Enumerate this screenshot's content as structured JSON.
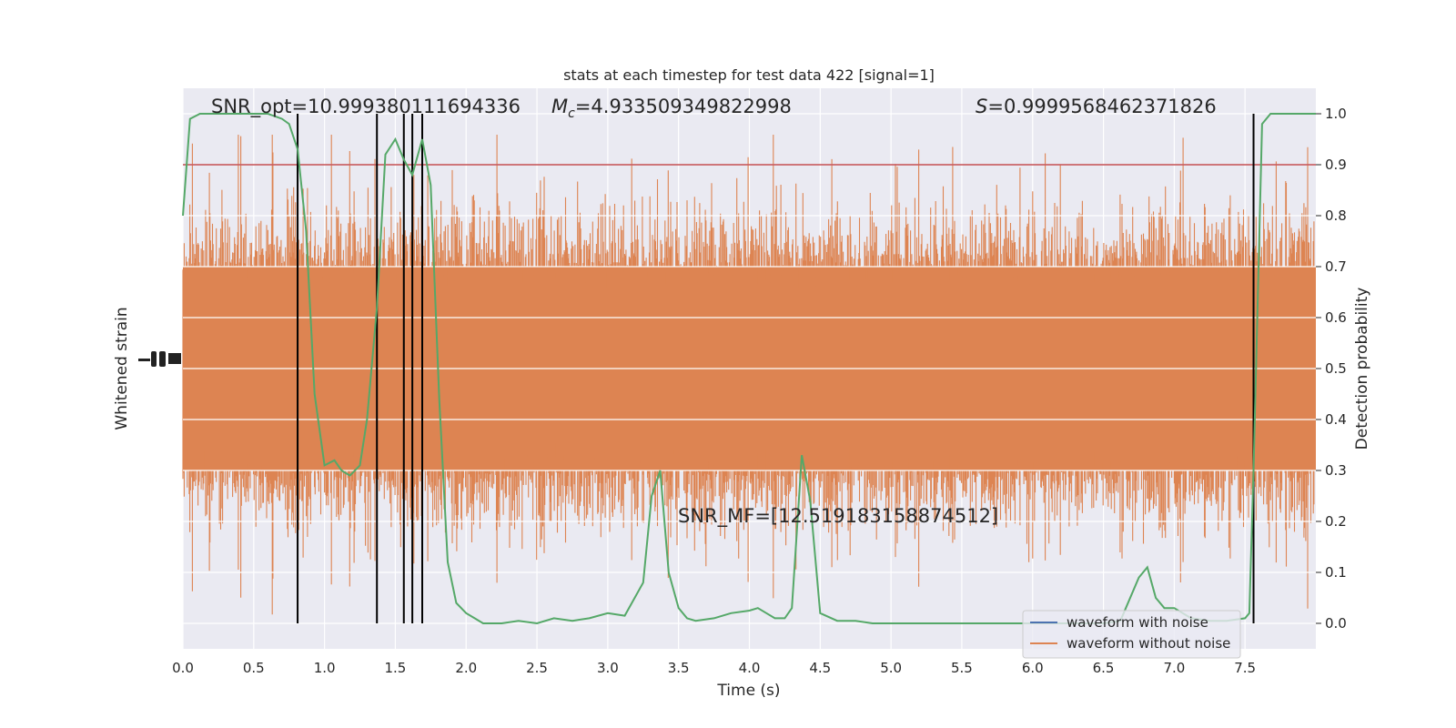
{
  "chart_data": {
    "type": "line",
    "title": "stats at each timestep for test data 422 [signal=1]",
    "xlabel": "Time (s)",
    "ylabel_left": "Whitened strain",
    "ylabel_right": "Detection probability",
    "xlim": [
      0,
      8
    ],
    "ylim_right": [
      -0.05,
      1.05
    ],
    "x_ticks": [
      "0.0",
      "0.5",
      "1.0",
      "1.5",
      "2.0",
      "2.5",
      "3.0",
      "3.5",
      "4.0",
      "4.5",
      "5.0",
      "5.5",
      "6.0",
      "6.5",
      "7.0",
      "7.5"
    ],
    "y_ticks_right": [
      "0.0",
      "0.1",
      "0.2",
      "0.3",
      "0.4",
      "0.5",
      "0.6",
      "0.7",
      "0.8",
      "0.9",
      "1.0"
    ],
    "grid": true,
    "legend_position": "bottom-right",
    "annotations": {
      "snr_opt": "SNR_opt=10.999380111694336",
      "mc": "=4.933509349822998",
      "mc_symbol": "M",
      "mc_sub": "c",
      "s_value": "=0.9999568462371826",
      "s_symbol": "S",
      "snr_mf": "SNR_MF=[12.519183158874512]"
    },
    "threshold": 0.9,
    "detection_markers": [
      0.81,
      1.37,
      1.56,
      1.62,
      1.69,
      7.56
    ],
    "series": [
      {
        "name": "waveform with noise",
        "color": "#4c72b0",
        "kind": "strain"
      },
      {
        "name": "waveform without noise",
        "color": "#dd8452",
        "kind": "strain"
      },
      {
        "color": "#55a868",
        "kind": "probability",
        "x": [
          0.0,
          0.05,
          0.12,
          0.2,
          0.3,
          0.4,
          0.5,
          0.6,
          0.7,
          0.75,
          0.81,
          0.87,
          0.93,
          1.0,
          1.07,
          1.12,
          1.18,
          1.25,
          1.3,
          1.37,
          1.43,
          1.5,
          1.56,
          1.62,
          1.69,
          1.75,
          1.81,
          1.87,
          1.93,
          2.0,
          2.06,
          2.12,
          2.25,
          2.37,
          2.5,
          2.62,
          2.75,
          2.87,
          3.0,
          3.12,
          3.25,
          3.31,
          3.37,
          3.43,
          3.5,
          3.56,
          3.62,
          3.75,
          3.87,
          4.0,
          4.06,
          4.12,
          4.18,
          4.25,
          4.3,
          4.37,
          4.43,
          4.5,
          4.62,
          4.75,
          4.87,
          5.0,
          5.5,
          6.0,
          6.5,
          6.62,
          6.75,
          6.81,
          6.87,
          6.93,
          7.0,
          7.12,
          7.25,
          7.37,
          7.5,
          7.53,
          7.56,
          7.62,
          7.68,
          7.75,
          7.87,
          8.0
        ],
        "y": [
          0.8,
          0.99,
          1.0,
          1.0,
          1.0,
          1.0,
          1.0,
          1.0,
          0.99,
          0.98,
          0.93,
          0.77,
          0.45,
          0.31,
          0.32,
          0.3,
          0.29,
          0.31,
          0.4,
          0.62,
          0.92,
          0.95,
          0.91,
          0.88,
          0.95,
          0.86,
          0.44,
          0.12,
          0.04,
          0.02,
          0.01,
          0.0,
          0.0,
          0.005,
          0.0,
          0.01,
          0.005,
          0.01,
          0.02,
          0.015,
          0.08,
          0.25,
          0.3,
          0.1,
          0.03,
          0.01,
          0.005,
          0.01,
          0.02,
          0.025,
          0.03,
          0.02,
          0.01,
          0.01,
          0.03,
          0.33,
          0.24,
          0.02,
          0.005,
          0.005,
          0.0,
          0.0,
          0.0,
          0.0,
          0.0,
          0.005,
          0.09,
          0.11,
          0.05,
          0.03,
          0.03,
          0.01,
          0.005,
          0.005,
          0.01,
          0.02,
          0.3,
          0.98,
          1.0,
          1.0,
          1.0,
          1.0
        ]
      }
    ]
  }
}
